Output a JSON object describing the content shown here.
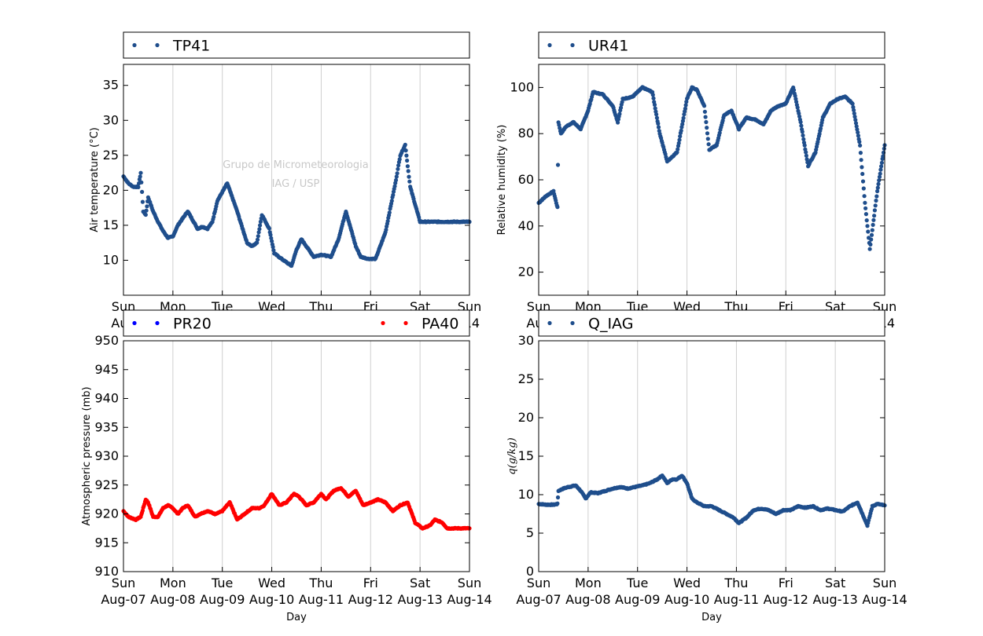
{
  "chart_data": [
    {
      "id": "tp41",
      "type": "scatter",
      "ylabel": "Air temperature (°C)",
      "xlabel": "Day",
      "ylim": [
        5,
        38
      ],
      "yticks": [
        "10",
        "15",
        "20",
        "25",
        "30",
        "35"
      ],
      "ytick_values": [
        10,
        15,
        20,
        25,
        30,
        35
      ],
      "legend": [
        {
          "name": "TP41",
          "color": "#1f4e8c"
        }
      ],
      "watermark": [
        "Grupo de Micrometeorologia",
        "IAG / USP"
      ],
      "grid": "vertical",
      "series": [
        {
          "name": "TP41",
          "color": "#1f4e8c",
          "x": [
            0,
            0.1,
            0.2,
            0.3,
            0.35,
            0.4,
            0.45,
            0.5,
            0.6,
            0.7,
            0.8,
            0.9,
            1.0,
            1.1,
            1.3,
            1.5,
            1.6,
            1.7,
            1.8,
            1.9,
            2.1,
            2.3,
            2.5,
            2.6,
            2.7,
            2.8,
            2.95,
            3.05,
            3.2,
            3.4,
            3.5,
            3.6,
            3.7,
            3.85,
            4.0,
            4.2,
            4.35,
            4.5,
            4.7,
            4.8,
            4.95,
            5.1,
            5.3,
            5.5,
            5.6,
            5.7,
            5.8,
            6.0,
            6.2,
            6.3,
            6.45,
            6.55,
            6.7,
            6.85,
            7.0
          ],
          "values": [
            22.0,
            21.0,
            20.5,
            20.5,
            22.5,
            17.0,
            16.5,
            19.0,
            17.0,
            15.5,
            14.2,
            13.2,
            13.4,
            15.0,
            17.0,
            14.5,
            14.8,
            14.5,
            15.5,
            18.5,
            21.0,
            17.0,
            12.5,
            12.0,
            12.5,
            16.5,
            14.5,
            11.0,
            10.2,
            9.2,
            11.5,
            13.0,
            12.0,
            10.5,
            10.8,
            10.5,
            13.0,
            17.0,
            12.0,
            10.5,
            10.2,
            10.2,
            14.0,
            21.0,
            25.0,
            26.5,
            20.5,
            15.5,
            15.5,
            15.5,
            15.5,
            15.5,
            15.5,
            15.5,
            15.5
          ]
        }
      ]
    },
    {
      "id": "ur41",
      "type": "scatter",
      "ylabel": "Relative humidity (%)",
      "xlabel": "Day",
      "ylim": [
        10,
        110
      ],
      "yticks": [
        "20",
        "40",
        "60",
        "80",
        "100"
      ],
      "ytick_values": [
        20,
        40,
        60,
        80,
        100
      ],
      "legend": [
        {
          "name": "UR41",
          "color": "#1f4e8c"
        }
      ],
      "grid": "vertical",
      "series": [
        {
          "name": "UR41",
          "color": "#1f4e8c",
          "x": [
            0,
            0.15,
            0.3,
            0.38,
            0.4,
            0.45,
            0.55,
            0.7,
            0.85,
            1.0,
            1.1,
            1.3,
            1.5,
            1.6,
            1.7,
            1.9,
            2.1,
            2.3,
            2.45,
            2.6,
            2.8,
            3.0,
            3.1,
            3.2,
            3.35,
            3.45,
            3.6,
            3.75,
            3.9,
            4.05,
            4.2,
            4.4,
            4.55,
            4.7,
            4.85,
            5.0,
            5.15,
            5.3,
            5.45,
            5.6,
            5.75,
            5.9,
            6.05,
            6.2,
            6.35,
            6.5,
            6.6,
            6.7,
            6.85,
            7.0
          ],
          "values": [
            50,
            53,
            55,
            48,
            85,
            80,
            83,
            85,
            82,
            90,
            98,
            97,
            92,
            85,
            95,
            96,
            100,
            98,
            80,
            68,
            72,
            95,
            100,
            99,
            92,
            73,
            75,
            88,
            90,
            82,
            87,
            86,
            84,
            90,
            92,
            93,
            100,
            85,
            66,
            72,
            87,
            93,
            95,
            96,
            93,
            75,
            50,
            30,
            55,
            75
          ]
        }
      ]
    },
    {
      "id": "pressure",
      "type": "scatter",
      "ylabel": "Atmospheric pressure (mb)",
      "xlabel": "Day",
      "ylim": [
        910,
        950
      ],
      "yticks": [
        "910",
        "915",
        "920",
        "925",
        "930",
        "935",
        "940",
        "945",
        "950"
      ],
      "ytick_values": [
        910,
        915,
        920,
        925,
        930,
        935,
        940,
        945,
        950
      ],
      "legend": [
        {
          "name": "PR20",
          "color": "#0000ff"
        },
        {
          "name": "PA40",
          "color": "#ff0000"
        }
      ],
      "grid": "vertical",
      "series": [
        {
          "name": "PA40",
          "color": "#ff0000",
          "x": [
            0,
            0.1,
            0.25,
            0.35,
            0.45,
            0.5,
            0.6,
            0.7,
            0.8,
            0.9,
            1.0,
            1.1,
            1.2,
            1.3,
            1.45,
            1.55,
            1.7,
            1.85,
            2.0,
            2.15,
            2.3,
            2.45,
            2.6,
            2.75,
            2.85,
            3.0,
            3.15,
            3.3,
            3.45,
            3.55,
            3.7,
            3.85,
            4.0,
            4.1,
            4.25,
            4.4,
            4.55,
            4.7,
            4.85,
            5.0,
            5.15,
            5.3,
            5.45,
            5.6,
            5.75,
            5.9,
            6.05,
            6.2,
            6.3,
            6.45,
            6.55,
            6.7,
            6.85,
            7.0
          ],
          "values": [
            920.5,
            919.5,
            919.0,
            919.5,
            922.5,
            922.0,
            919.5,
            919.5,
            921.0,
            921.5,
            921.0,
            920.0,
            921.0,
            921.5,
            919.5,
            920.0,
            920.5,
            920.0,
            920.5,
            922.0,
            919.0,
            920.0,
            921.0,
            921.0,
            921.5,
            923.5,
            921.5,
            922.0,
            923.5,
            923.0,
            921.5,
            922.0,
            923.5,
            922.5,
            924.0,
            924.5,
            923.0,
            924.0,
            921.5,
            922.0,
            922.5,
            922.0,
            920.5,
            921.5,
            922.0,
            918.5,
            917.5,
            918.0,
            919.0,
            918.5,
            917.5,
            917.5,
            917.5,
            917.5
          ]
        }
      ]
    },
    {
      "id": "q_iag",
      "type": "scatter",
      "ylabel": "q(g/kg)",
      "xlabel": "Day",
      "ylim": [
        0,
        30
      ],
      "yticks": [
        "0",
        "5",
        "10",
        "15",
        "20",
        "25",
        "30"
      ],
      "ytick_values": [
        0,
        5,
        10,
        15,
        20,
        25,
        30
      ],
      "legend": [
        {
          "name": "Q_IAG",
          "color": "#1f4e8c"
        }
      ],
      "grid": "vertical",
      "series": [
        {
          "name": "Q_IAG",
          "color": "#1f4e8c",
          "x": [
            0,
            0.15,
            0.3,
            0.38,
            0.4,
            0.5,
            0.6,
            0.75,
            0.85,
            0.95,
            1.05,
            1.2,
            1.35,
            1.5,
            1.65,
            1.8,
            1.95,
            2.1,
            2.25,
            2.4,
            2.5,
            2.6,
            2.7,
            2.8,
            2.9,
            3.0,
            3.1,
            3.2,
            3.35,
            3.5,
            3.65,
            3.8,
            3.95,
            4.05,
            4.2,
            4.35,
            4.5,
            4.65,
            4.8,
            4.95,
            5.1,
            5.25,
            5.4,
            5.55,
            5.7,
            5.85,
            6.0,
            6.15,
            6.3,
            6.45,
            6.55,
            6.65,
            6.75,
            6.85,
            7.0
          ],
          "values": [
            8.8,
            8.7,
            8.7,
            8.8,
            10.5,
            10.8,
            11.0,
            11.2,
            10.5,
            9.5,
            10.3,
            10.2,
            10.5,
            10.8,
            11.0,
            10.8,
            11.0,
            11.2,
            11.5,
            12.0,
            12.5,
            11.5,
            12.0,
            12.0,
            12.5,
            11.5,
            9.5,
            9.0,
            8.5,
            8.5,
            8.0,
            7.5,
            7.0,
            6.3,
            7.0,
            8.0,
            8.2,
            8.0,
            7.5,
            8.0,
            8.0,
            8.5,
            8.3,
            8.5,
            8.0,
            8.2,
            8.0,
            7.8,
            8.5,
            9.0,
            7.5,
            6.0,
            8.5,
            8.8,
            8.6
          ]
        }
      ]
    }
  ],
  "x_axis": {
    "ticks_line1": [
      "Sun",
      "Mon",
      "Tue",
      "Wed",
      "Thu",
      "Fri",
      "Sat",
      "Sun"
    ],
    "ticks_line2": [
      "Aug-07",
      "Aug-08",
      "Aug-09",
      "Aug-10",
      "Aug-11",
      "Aug-12",
      "Aug-13",
      "Aug-14"
    ],
    "xlim": [
      0,
      7
    ]
  }
}
